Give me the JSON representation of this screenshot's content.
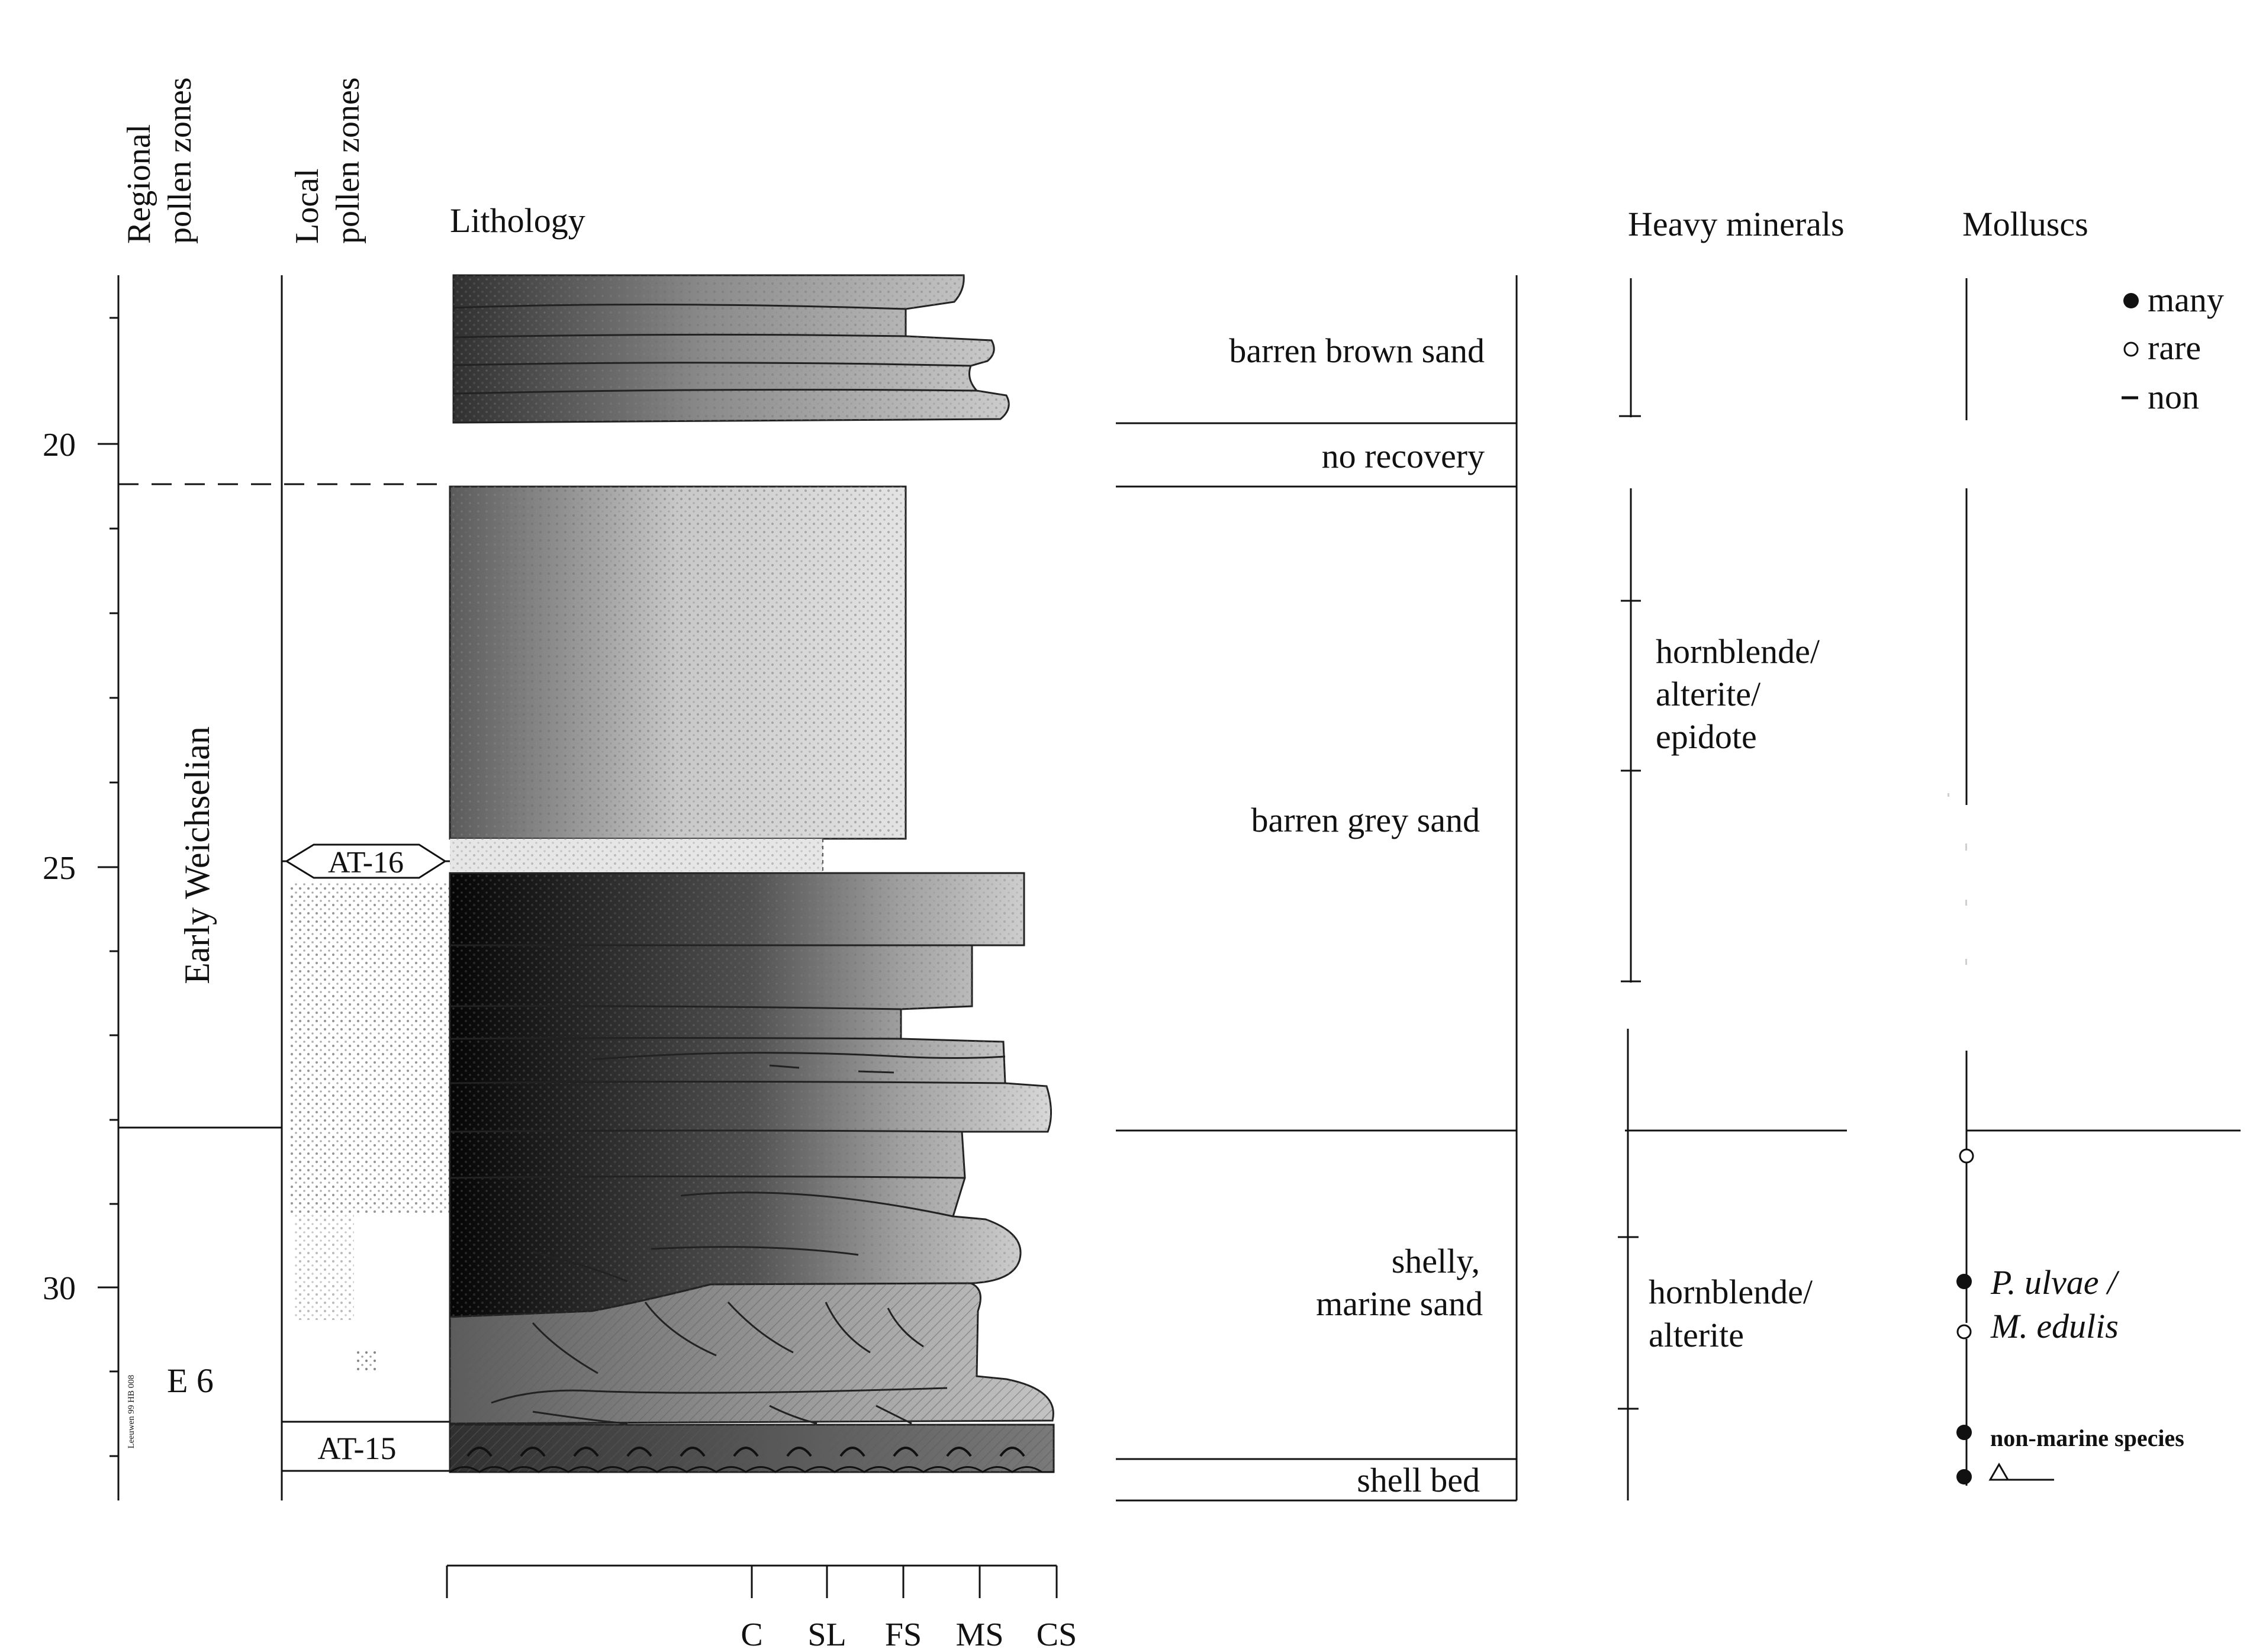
{
  "headers": {
    "regional": [
      "Regional",
      "pollen zones"
    ],
    "local": [
      "Local",
      "pollen zones"
    ],
    "lithology": "Lithology",
    "heavy": "Heavy minerals",
    "molluscs": "Molluscs"
  },
  "depth_ticks": [
    20,
    25,
    30
  ],
  "regional_zones": [
    {
      "id": "early",
      "label": "Early Weichselian"
    },
    {
      "id": "e6",
      "label": "E 6"
    }
  ],
  "local_zones": [
    {
      "id": "at16",
      "label": "AT-16"
    },
    {
      "id": "at15",
      "label": "AT-15"
    }
  ],
  "credit": "Leeuwen 99 HB 008",
  "grain_scale": [
    "C",
    "SL",
    "FS",
    "MS",
    "CS"
  ],
  "descriptions": [
    {
      "id": "brown",
      "lines": [
        "barren brown sand"
      ]
    },
    {
      "id": "norec",
      "lines": [
        "no recovery"
      ]
    },
    {
      "id": "grey",
      "lines": [
        "barren grey sand"
      ]
    },
    {
      "id": "shelly",
      "lines": [
        "shelly,",
        "marine sand"
      ]
    },
    {
      "id": "shellbed",
      "lines": [
        "shell bed"
      ]
    }
  ],
  "heavy_minerals": [
    {
      "id": "hm1",
      "lines": [
        "hornblende/",
        "alterite/",
        "epidote"
      ]
    },
    {
      "id": "hm2",
      "lines": [
        "hornblende/",
        "alterite"
      ]
    }
  ],
  "mollusc_legend": [
    {
      "symbol": "filled",
      "label": "many"
    },
    {
      "symbol": "open",
      "label": "rare"
    },
    {
      "symbol": "dash",
      "label": "non"
    }
  ],
  "mollusc_labels": {
    "species_a": "P. ulvae /",
    "species_b": "M. edulis",
    "nonmarine": "non-marine species"
  }
}
